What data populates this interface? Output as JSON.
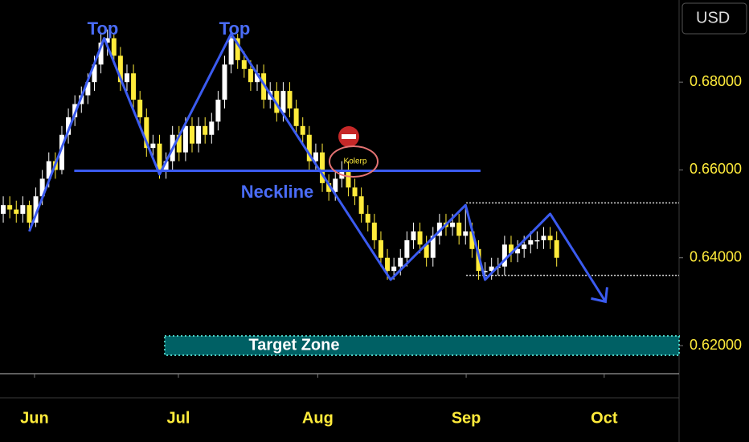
{
  "chart_data": {
    "type": "candlestick",
    "currency": "USD",
    "x": [
      0,
      1,
      2,
      3,
      4,
      5,
      6,
      7,
      8,
      9,
      10,
      11,
      12,
      13,
      14,
      15,
      16,
      17,
      18,
      19,
      20,
      21,
      22,
      23,
      24,
      25,
      26,
      27,
      28,
      29,
      30,
      31,
      32,
      33,
      34,
      35,
      36,
      37,
      38,
      39,
      40,
      41,
      42,
      43,
      44,
      45,
      46,
      47,
      48,
      49,
      50,
      51,
      52,
      53,
      54,
      55,
      56,
      57,
      58,
      59,
      60,
      61,
      62,
      63,
      64,
      65,
      66,
      67,
      68,
      69,
      70,
      71,
      72,
      73,
      74,
      75,
      76,
      77,
      78,
      79,
      80,
      81,
      82,
      83,
      84,
      85
    ],
    "open": [
      0.65,
      0.652,
      0.651,
      0.65,
      0.652,
      0.648,
      0.654,
      0.658,
      0.662,
      0.66,
      0.668,
      0.672,
      0.675,
      0.677,
      0.68,
      0.684,
      0.689,
      0.69,
      0.686,
      0.68,
      0.682,
      0.676,
      0.672,
      0.665,
      0.666,
      0.66,
      0.662,
      0.668,
      0.664,
      0.67,
      0.666,
      0.67,
      0.668,
      0.671,
      0.676,
      0.684,
      0.69,
      0.685,
      0.683,
      0.68,
      0.682,
      0.676,
      0.678,
      0.673,
      0.678,
      0.674,
      0.67,
      0.668,
      0.662,
      0.664,
      0.657,
      0.655,
      0.658,
      0.66,
      0.656,
      0.654,
      0.65,
      0.648,
      0.644,
      0.64,
      0.637,
      0.638,
      0.64,
      0.644,
      0.646,
      0.643,
      0.64,
      0.645,
      0.648,
      0.647,
      0.648,
      0.645,
      0.646,
      0.642,
      0.637,
      0.637,
      0.638,
      0.638,
      0.643,
      0.641,
      0.642,
      0.643,
      0.644,
      0.644,
      0.645,
      0.644
    ],
    "high": [
      0.654,
      0.654,
      0.653,
      0.654,
      0.653,
      0.656,
      0.66,
      0.664,
      0.664,
      0.67,
      0.674,
      0.677,
      0.679,
      0.682,
      0.686,
      0.691,
      0.692,
      0.691,
      0.688,
      0.684,
      0.684,
      0.678,
      0.674,
      0.668,
      0.668,
      0.664,
      0.67,
      0.67,
      0.672,
      0.672,
      0.672,
      0.672,
      0.673,
      0.678,
      0.686,
      0.692,
      0.691,
      0.687,
      0.685,
      0.684,
      0.684,
      0.68,
      0.68,
      0.68,
      0.68,
      0.676,
      0.672,
      0.67,
      0.666,
      0.666,
      0.659,
      0.66,
      0.662,
      0.662,
      0.658,
      0.656,
      0.652,
      0.65,
      0.646,
      0.642,
      0.64,
      0.642,
      0.646,
      0.648,
      0.648,
      0.645,
      0.647,
      0.65,
      0.65,
      0.65,
      0.65,
      0.652,
      0.648,
      0.644,
      0.639,
      0.64,
      0.64,
      0.645,
      0.645,
      0.644,
      0.645,
      0.646,
      0.646,
      0.647,
      0.647,
      0.646
    ],
    "low": [
      0.648,
      0.649,
      0.648,
      0.648,
      0.646,
      0.647,
      0.652,
      0.656,
      0.658,
      0.659,
      0.666,
      0.67,
      0.673,
      0.675,
      0.678,
      0.682,
      0.686,
      0.684,
      0.678,
      0.678,
      0.674,
      0.67,
      0.663,
      0.663,
      0.658,
      0.658,
      0.66,
      0.662,
      0.662,
      0.664,
      0.664,
      0.666,
      0.666,
      0.669,
      0.674,
      0.682,
      0.683,
      0.681,
      0.678,
      0.678,
      0.674,
      0.674,
      0.671,
      0.671,
      0.672,
      0.668,
      0.666,
      0.66,
      0.66,
      0.655,
      0.653,
      0.653,
      0.656,
      0.654,
      0.652,
      0.648,
      0.646,
      0.642,
      0.638,
      0.635,
      0.635,
      0.636,
      0.638,
      0.642,
      0.641,
      0.638,
      0.638,
      0.643,
      0.645,
      0.645,
      0.643,
      0.643,
      0.64,
      0.635,
      0.635,
      0.635,
      0.636,
      0.636,
      0.639,
      0.639,
      0.64,
      0.641,
      0.642,
      0.642,
      0.642,
      0.638
    ],
    "close": [
      0.652,
      0.651,
      0.65,
      0.652,
      0.648,
      0.654,
      0.658,
      0.662,
      0.66,
      0.668,
      0.672,
      0.675,
      0.677,
      0.68,
      0.684,
      0.689,
      0.69,
      0.686,
      0.68,
      0.682,
      0.676,
      0.672,
      0.665,
      0.666,
      0.66,
      0.662,
      0.668,
      0.664,
      0.67,
      0.666,
      0.67,
      0.668,
      0.671,
      0.676,
      0.684,
      0.69,
      0.685,
      0.683,
      0.68,
      0.682,
      0.676,
      0.678,
      0.673,
      0.678,
      0.674,
      0.67,
      0.668,
      0.662,
      0.664,
      0.657,
      0.655,
      0.658,
      0.66,
      0.656,
      0.654,
      0.65,
      0.648,
      0.644,
      0.64,
      0.637,
      0.638,
      0.64,
      0.644,
      0.646,
      0.643,
      0.64,
      0.645,
      0.648,
      0.647,
      0.648,
      0.645,
      0.646,
      0.642,
      0.637,
      0.637,
      0.638,
      0.638,
      0.643,
      0.641,
      0.642,
      0.643,
      0.644,
      0.644,
      0.645,
      0.644,
      0.64
    ],
    "up_color": "#ffffff",
    "down_color": "#ffeb3b",
    "xlim": [
      -0.5,
      103.8
    ],
    "xticks": [
      {
        "value": 4.8,
        "label": "Jun"
      },
      {
        "value": 26.9,
        "label": "Jul"
      },
      {
        "value": 48.3,
        "label": "Aug"
      },
      {
        "value": 71.1,
        "label": "Sep"
      },
      {
        "value": 92.3,
        "label": "Oct"
      }
    ],
    "ylim": [
      0.6136,
      0.6987
    ],
    "yticks": [
      {
        "value": 0.62,
        "label": "0.62000"
      },
      {
        "value": 0.64,
        "label": "0.64000"
      },
      {
        "value": 0.66,
        "label": "0.66000"
      },
      {
        "value": 0.68,
        "label": "0.68000"
      }
    ],
    "pattern_color": "#3b5bf0",
    "pattern_x": [
      4,
      15.5,
      24,
      35,
      59.5,
      71,
      74,
      84,
      92.5
    ],
    "pattern_y": [
      0.646,
      0.69,
      0.659,
      0.691,
      0.635,
      0.652,
      0.635,
      0.65,
      0.63
    ],
    "top_labels": [
      "Top",
      "Top"
    ],
    "neckline": {
      "label": "Neckline",
      "value": 0.6598,
      "start": 10.9,
      "end": 73.3
    },
    "range_levels": {
      "values": [
        0.6525,
        0.636
      ],
      "start": 71.1
    },
    "target_zone": {
      "label": "Target Zone",
      "low": 0.6178,
      "high": 0.6222,
      "start": 24.8
    },
    "marker_label": "Kolerp"
  }
}
